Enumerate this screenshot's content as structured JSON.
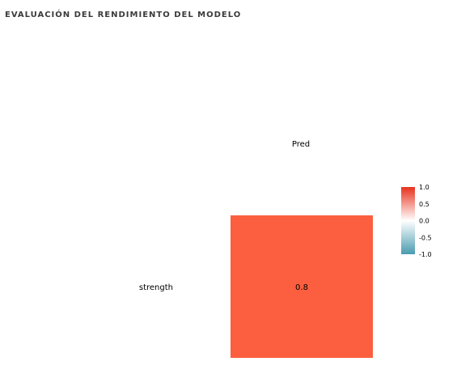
{
  "header": {
    "title": "EVALUACIÓN DEL RENDIMIENTO DEL MODELO"
  },
  "chart_data": {
    "type": "heatmap",
    "x_categories": [
      "Pred"
    ],
    "y_categories": [
      "strength"
    ],
    "values": [
      [
        0.8
      ]
    ],
    "cell_labels": [
      [
        "0.8"
      ]
    ],
    "legend": {
      "range": [
        -1.0,
        1.0
      ],
      "ticks": [
        "1.0",
        "0.5",
        "0.0",
        "-0.5",
        "-1.0"
      ],
      "tick_values": [
        1.0,
        0.5,
        0.0,
        -0.5,
        -1.0
      ],
      "colors": {
        "low": "#4a9bb0",
        "mid": "#ffffff",
        "high": "#e8321e"
      },
      "placement": "right"
    },
    "cell_color": "#fb5f3f"
  }
}
